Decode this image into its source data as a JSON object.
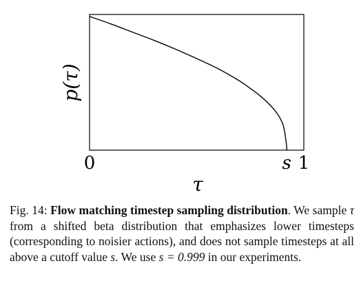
{
  "chart_data": {
    "type": "line",
    "title": "",
    "xlabel": "τ",
    "ylabel": "p(τ)",
    "xlim": [
      0,
      1
    ],
    "ylim": [
      0,
      1
    ],
    "grid": false,
    "x_ticks": [
      {
        "value": 0,
        "label": "0"
      },
      {
        "value": 0.92,
        "label": "s"
      },
      {
        "value": 1,
        "label": "1"
      }
    ],
    "y_ticks": [],
    "series": [
      {
        "x": [
          0,
          0.1,
          0.2,
          0.3,
          0.4,
          0.5,
          0.6,
          0.7,
          0.75,
          0.8,
          0.85,
          0.88,
          0.9,
          0.91,
          0.92
        ],
        "y": [
          0.985,
          0.93,
          0.87,
          0.81,
          0.745,
          0.675,
          0.6,
          0.51,
          0.455,
          0.395,
          0.32,
          0.26,
          0.2,
          0.14,
          0.03
        ]
      }
    ]
  },
  "caption": {
    "label": "Fig. 14:",
    "title": "Flow matching timestep sampling distribution",
    "text_1": "We sample",
    "var_tau": "τ",
    "text_2": "from a shifted beta distribution that emphasizes lower timesteps (corresponding to noisier actions), and does not sample timesteps at all above a cutoff value",
    "var_s": "s",
    "text_3": ". We use",
    "equation": "s = 0.999",
    "text_4": "in our experiments."
  }
}
